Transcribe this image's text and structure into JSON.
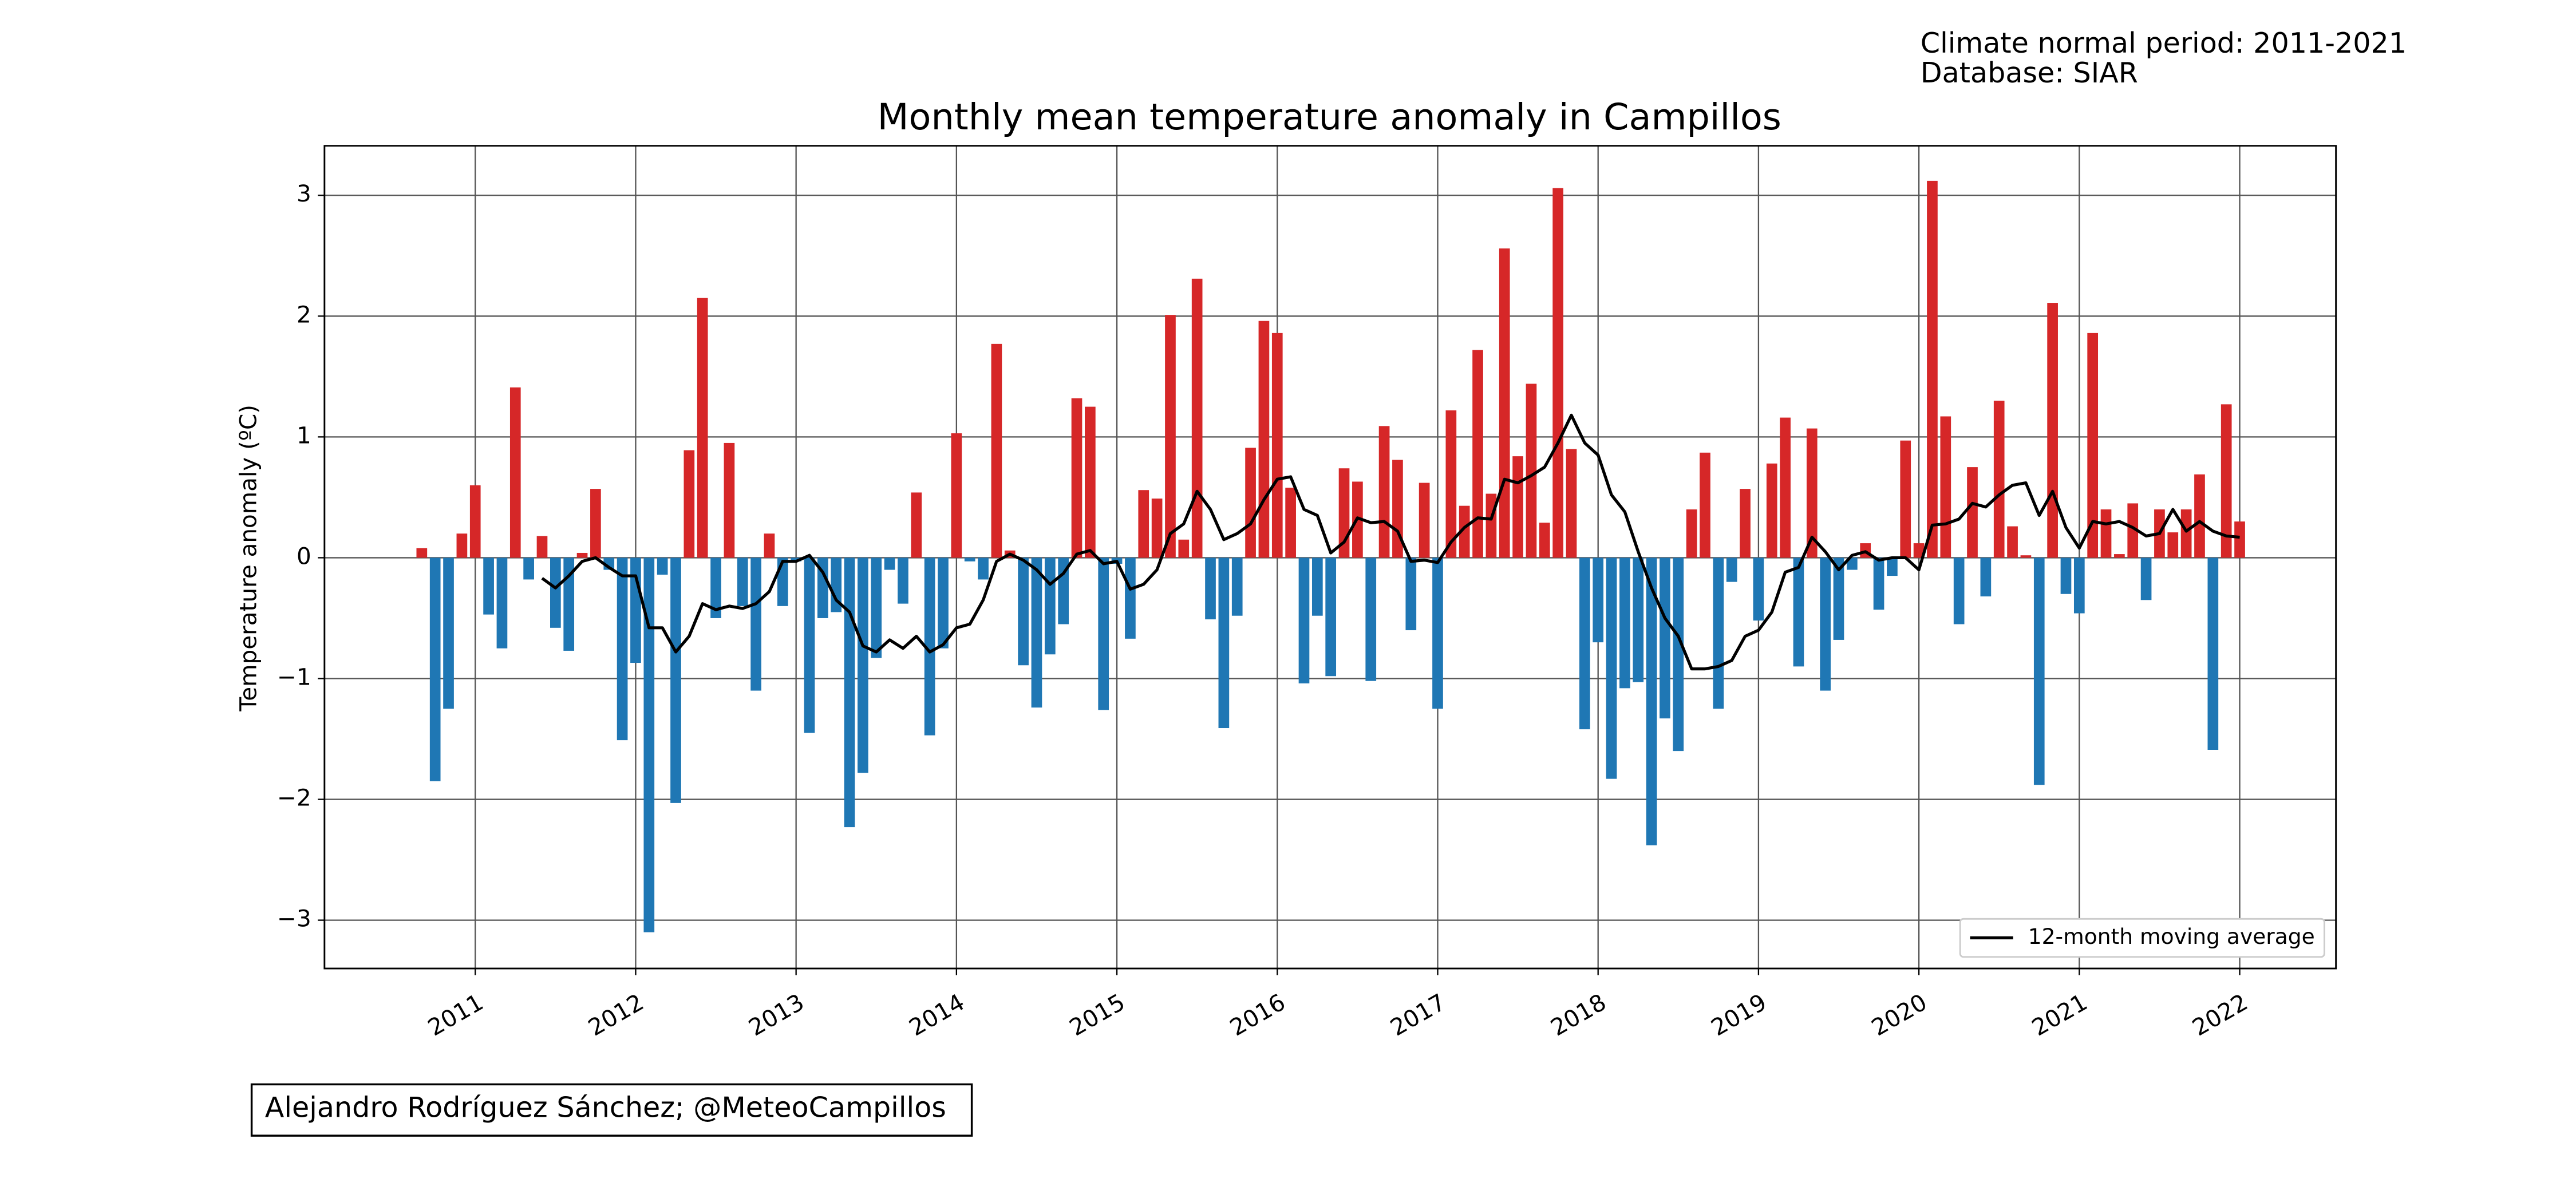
{
  "chart_data": {
    "type": "bar",
    "title": "Monthly mean temperature anomaly in Campillos",
    "annotations": [
      "Climate normal period: 2011-2021",
      "Database: SIAR"
    ],
    "credit": "Alejandro Rodríguez Sánchez; @MeteoCampillos",
    "y_label": "Temperature anomaly (ºC)",
    "x": [
      "2010-09",
      "2010-10",
      "2010-11",
      "2010-12",
      "2011-01",
      "2011-02",
      "2011-03",
      "2011-04",
      "2011-05",
      "2011-06",
      "2011-07",
      "2011-08",
      "2011-09",
      "2011-10",
      "2011-11",
      "2011-12",
      "2012-01",
      "2012-02",
      "2012-03",
      "2012-04",
      "2012-05",
      "2012-06",
      "2012-07",
      "2012-08",
      "2012-09",
      "2012-10",
      "2012-11",
      "2012-12",
      "2013-01",
      "2013-02",
      "2013-03",
      "2013-04",
      "2013-05",
      "2013-06",
      "2013-07",
      "2013-08",
      "2013-09",
      "2013-10",
      "2013-11",
      "2013-12",
      "2014-01",
      "2014-02",
      "2014-03",
      "2014-04",
      "2014-05",
      "2014-06",
      "2014-07",
      "2014-08",
      "2014-09",
      "2014-10",
      "2014-11",
      "2014-12",
      "2015-01",
      "2015-02",
      "2015-03",
      "2015-04",
      "2015-05",
      "2015-06",
      "2015-07",
      "2015-08",
      "2015-09",
      "2015-10",
      "2015-11",
      "2015-12",
      "2016-01",
      "2016-02",
      "2016-03",
      "2016-04",
      "2016-05",
      "2016-06",
      "2016-07",
      "2016-08",
      "2016-09",
      "2016-10",
      "2016-11",
      "2016-12",
      "2017-01",
      "2017-02",
      "2017-03",
      "2017-04",
      "2017-05",
      "2017-06",
      "2017-07",
      "2017-08",
      "2017-09",
      "2017-10",
      "2017-11",
      "2017-12",
      "2018-01",
      "2018-02",
      "2018-03",
      "2018-04",
      "2018-05",
      "2018-06",
      "2018-07",
      "2018-08",
      "2018-09",
      "2018-10",
      "2018-11",
      "2018-12",
      "2019-01",
      "2019-02",
      "2019-03",
      "2019-04",
      "2019-05",
      "2019-06",
      "2019-07",
      "2019-08",
      "2019-09",
      "2019-10",
      "2019-11",
      "2019-12",
      "2020-01",
      "2020-02",
      "2020-03",
      "2020-04",
      "2020-05",
      "2020-06",
      "2020-07",
      "2020-08",
      "2020-09",
      "2020-10",
      "2020-11",
      "2020-12",
      "2021-01",
      "2021-02",
      "2021-03",
      "2021-04",
      "2021-05",
      "2021-06",
      "2021-07",
      "2021-08",
      "2021-09",
      "2021-10",
      "2021-11",
      "2021-12",
      "2022-01"
    ],
    "values": [
      0.08,
      -1.85,
      -1.25,
      0.2,
      0.6,
      -0.47,
      -0.75,
      1.41,
      -0.18,
      0.18,
      -0.58,
      -0.77,
      0.04,
      0.57,
      -0.1,
      -1.51,
      -0.87,
      -3.1,
      -0.14,
      -2.03,
      0.89,
      2.15,
      -0.5,
      0.95,
      -0.4,
      -1.1,
      0.2,
      -0.4,
      -0.03,
      -1.45,
      -0.5,
      -0.45,
      -2.23,
      -1.78,
      -0.83,
      -0.1,
      -0.38,
      0.54,
      -1.47,
      -0.75,
      1.03,
      -0.03,
      -0.18,
      1.77,
      0.06,
      -0.89,
      -1.24,
      -0.8,
      -0.55,
      1.32,
      1.25,
      -1.26,
      -0.05,
      -0.67,
      0.56,
      0.49,
      2.01,
      0.15,
      2.31,
      -0.51,
      -1.41,
      -0.48,
      0.91,
      1.96,
      1.86,
      0.58,
      -1.04,
      -0.48,
      -0.98,
      0.74,
      0.63,
      -1.02,
      1.09,
      0.81,
      -0.6,
      0.62,
      -1.25,
      1.22,
      0.43,
      1.72,
      0.53,
      2.56,
      0.84,
      1.44,
      0.29,
      3.06,
      0.9,
      -1.42,
      -0.7,
      -1.83,
      -1.08,
      -1.03,
      -2.38,
      -1.33,
      -1.6,
      0.4,
      0.87,
      -1.25,
      -0.2,
      0.57,
      -0.52,
      0.78,
      1.16,
      -0.9,
      1.07,
      -1.1,
      -0.68,
      -0.1,
      0.12,
      -0.43,
      -0.15,
      0.97,
      0.12,
      3.12,
      1.17,
      -0.55,
      0.75,
      -0.32,
      1.3,
      0.26,
      0.02,
      -1.88,
      2.11,
      -0.3,
      -0.46,
      1.86,
      0.4,
      0.03,
      0.45,
      -0.35,
      0.4,
      0.21,
      0.4,
      0.69,
      -1.59,
      1.27,
      0.3
    ],
    "positive_color": "#d62728",
    "negative_color": "#1f77b4",
    "series": [
      {
        "name": "12-month moving average",
        "type": "line",
        "color": "#000000",
        "values": [
          null,
          null,
          null,
          null,
          null,
          null,
          null,
          null,
          null,
          -0.17,
          -0.25,
          -0.15,
          -0.03,
          0.0,
          -0.08,
          -0.15,
          -0.15,
          -0.58,
          -0.58,
          -0.78,
          -0.65,
          -0.38,
          -0.43,
          -0.4,
          -0.42,
          -0.38,
          -0.28,
          -0.03,
          -0.03,
          0.02,
          -0.12,
          -0.35,
          -0.45,
          -0.73,
          -0.78,
          -0.68,
          -0.75,
          -0.65,
          -0.78,
          -0.72,
          -0.58,
          -0.55,
          -0.35,
          -0.03,
          0.03,
          -0.02,
          -0.1,
          -0.22,
          -0.13,
          0.03,
          0.06,
          -0.05,
          -0.03,
          -0.26,
          -0.22,
          -0.1,
          0.2,
          0.28,
          0.55,
          0.4,
          0.15,
          0.2,
          0.28,
          0.48,
          0.65,
          0.67,
          0.4,
          0.35,
          0.04,
          0.13,
          0.33,
          0.29,
          0.3,
          0.22,
          -0.03,
          -0.02,
          -0.04,
          0.13,
          0.25,
          0.33,
          0.32,
          0.65,
          0.62,
          0.68,
          0.75,
          0.95,
          1.18,
          0.95,
          0.85,
          0.52,
          0.38,
          0.05,
          -0.25,
          -0.5,
          -0.65,
          -0.92,
          -0.92,
          -0.9,
          -0.85,
          -0.65,
          -0.6,
          -0.45,
          -0.12,
          -0.08,
          0.17,
          0.05,
          -0.1,
          0.02,
          0.05,
          -0.02,
          0.0,
          0.0,
          -0.1,
          0.27,
          0.28,
          0.32,
          0.45,
          0.42,
          0.52,
          0.6,
          0.62,
          0.35,
          0.55,
          0.25,
          0.08,
          0.3,
          0.28,
          0.3,
          0.25,
          0.18,
          0.2,
          0.4,
          0.22,
          0.3,
          0.22,
          0.18,
          0.17
        ]
      }
    ],
    "xlim": [
      2010.06,
      2022.6
    ],
    "xticks": [
      2011,
      2012,
      2013,
      2014,
      2015,
      2016,
      2017,
      2018,
      2019,
      2020,
      2021,
      2022
    ],
    "ylim": [
      -3.4,
      3.41
    ],
    "yticks": [
      {
        "value": -3,
        "label": "−3"
      },
      {
        "value": -2,
        "label": "−2"
      },
      {
        "value": -1,
        "label": "−1"
      },
      0,
      1,
      2,
      3
    ],
    "grid": true,
    "legend": "lower right"
  }
}
